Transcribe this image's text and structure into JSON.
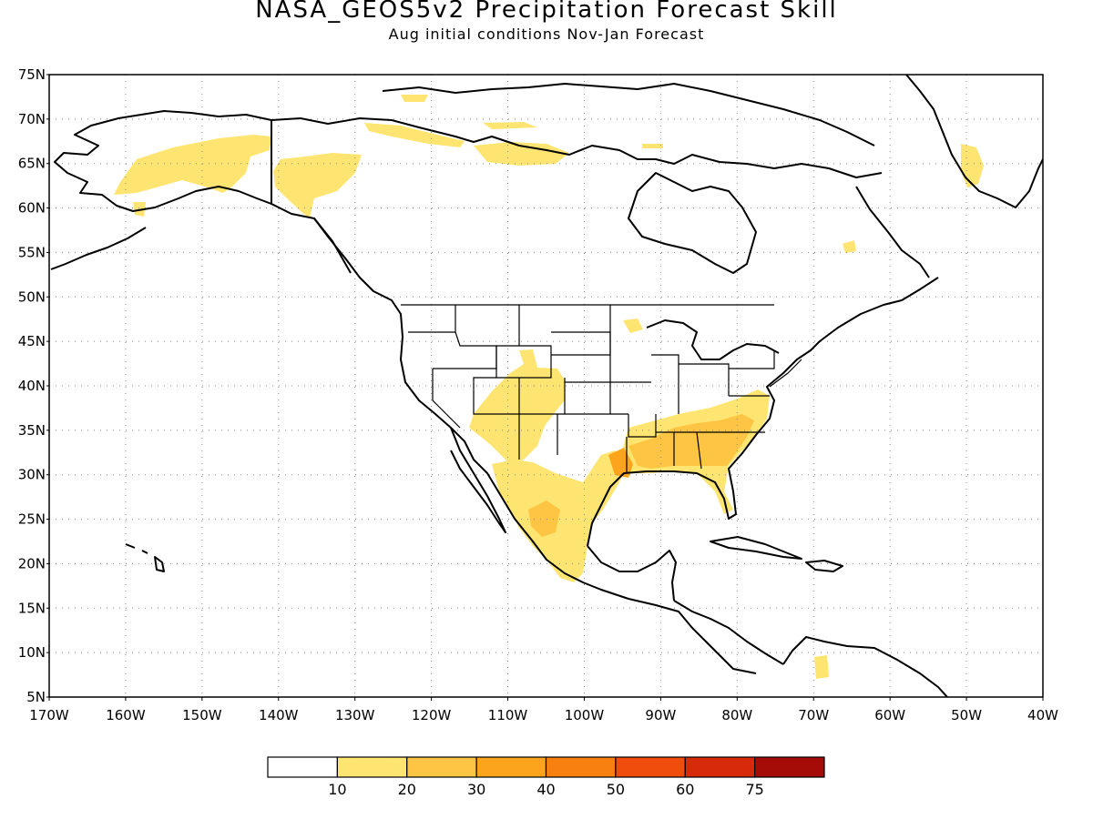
{
  "header": {
    "title": "NASA_GEOS5v2 Precipitation Forecast Skill",
    "subtitle": "Aug initial conditions  Nov-Jan Forecast"
  },
  "axes": {
    "lat_labels": [
      "75N",
      "70N",
      "65N",
      "60N",
      "55N",
      "50N",
      "45N",
      "40N",
      "35N",
      "30N",
      "25N",
      "20N",
      "15N",
      "10N",
      "5N"
    ],
    "lon_labels": [
      "170W",
      "160W",
      "150W",
      "140W",
      "130W",
      "120W",
      "110W",
      "100W",
      "90W",
      "80W",
      "70W",
      "60W",
      "50W",
      "40W"
    ],
    "lat_range": [
      5,
      75
    ],
    "lon_range": [
      -170,
      -40
    ],
    "grid": "dotted"
  },
  "colorbar": {
    "labels": [
      "10",
      "20",
      "30",
      "40",
      "50",
      "60",
      "75"
    ],
    "colors": [
      "#ffffff",
      "#fee571",
      "#fdc543",
      "#fba41c",
      "#f8800f",
      "#f04c0b",
      "#d72a0a",
      "#a50b07"
    ]
  },
  "skill_regions": [
    {
      "name": "southeast-us",
      "level": 2
    },
    {
      "name": "alaska",
      "level": 1
    },
    {
      "name": "mexico",
      "level": 1
    },
    {
      "name": "southwest-us",
      "level": 1
    },
    {
      "name": "greenland",
      "level": 1
    }
  ]
}
